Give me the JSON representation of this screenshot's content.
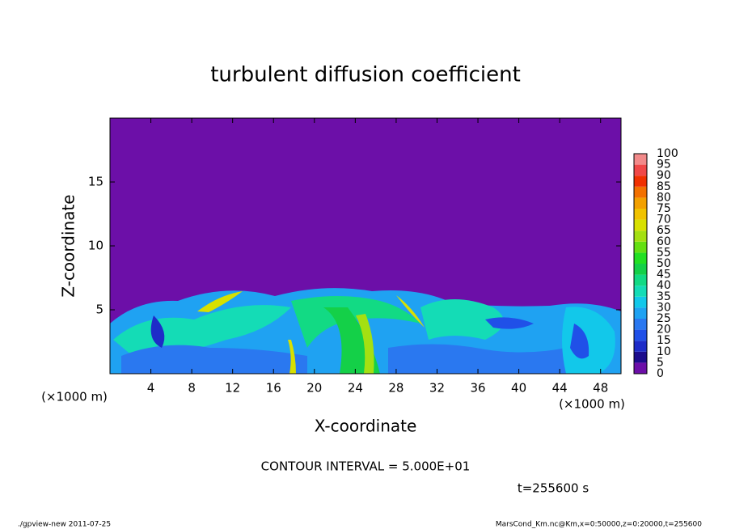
{
  "chart_data": {
    "type": "contour",
    "title": "turbulent diffusion coefficient",
    "xlabel": "X-coordinate",
    "ylabel": "Z-coordinate",
    "unit_label": "(×1000 m)",
    "xlim": [
      0,
      50
    ],
    "ylim": [
      0,
      20
    ],
    "xticks": [
      4,
      8,
      12,
      16,
      20,
      24,
      28,
      32,
      36,
      40,
      44,
      48
    ],
    "yticks": [
      5,
      10,
      15
    ],
    "levels": [
      0,
      5,
      10,
      15,
      20,
      25,
      30,
      35,
      40,
      45,
      50,
      55,
      60,
      65,
      70,
      75,
      80,
      85,
      90,
      95,
      100
    ],
    "colors": [
      "#6c0fa8",
      "#1c0c8c",
      "#1e2cc8",
      "#2050e8",
      "#2a78f0",
      "#1fa2f2",
      "#12c8ea",
      "#14dcb6",
      "#12da84",
      "#14d048",
      "#22e022",
      "#64e012",
      "#a4e012",
      "#d8e000",
      "#f0c200",
      "#f2a000",
      "#f27000",
      "#f03000",
      "#f04848",
      "#f28a8a"
    ],
    "contour_interval": "CONTOUR INTERVAL = 5.000E+01",
    "time_label": "t=255600 s",
    "footer_left": "./gpview-new   2011-07-25",
    "footer_right": "MarsCond_Km.nc@Km,x=0:50000,z=0:20000,t=255600"
  }
}
